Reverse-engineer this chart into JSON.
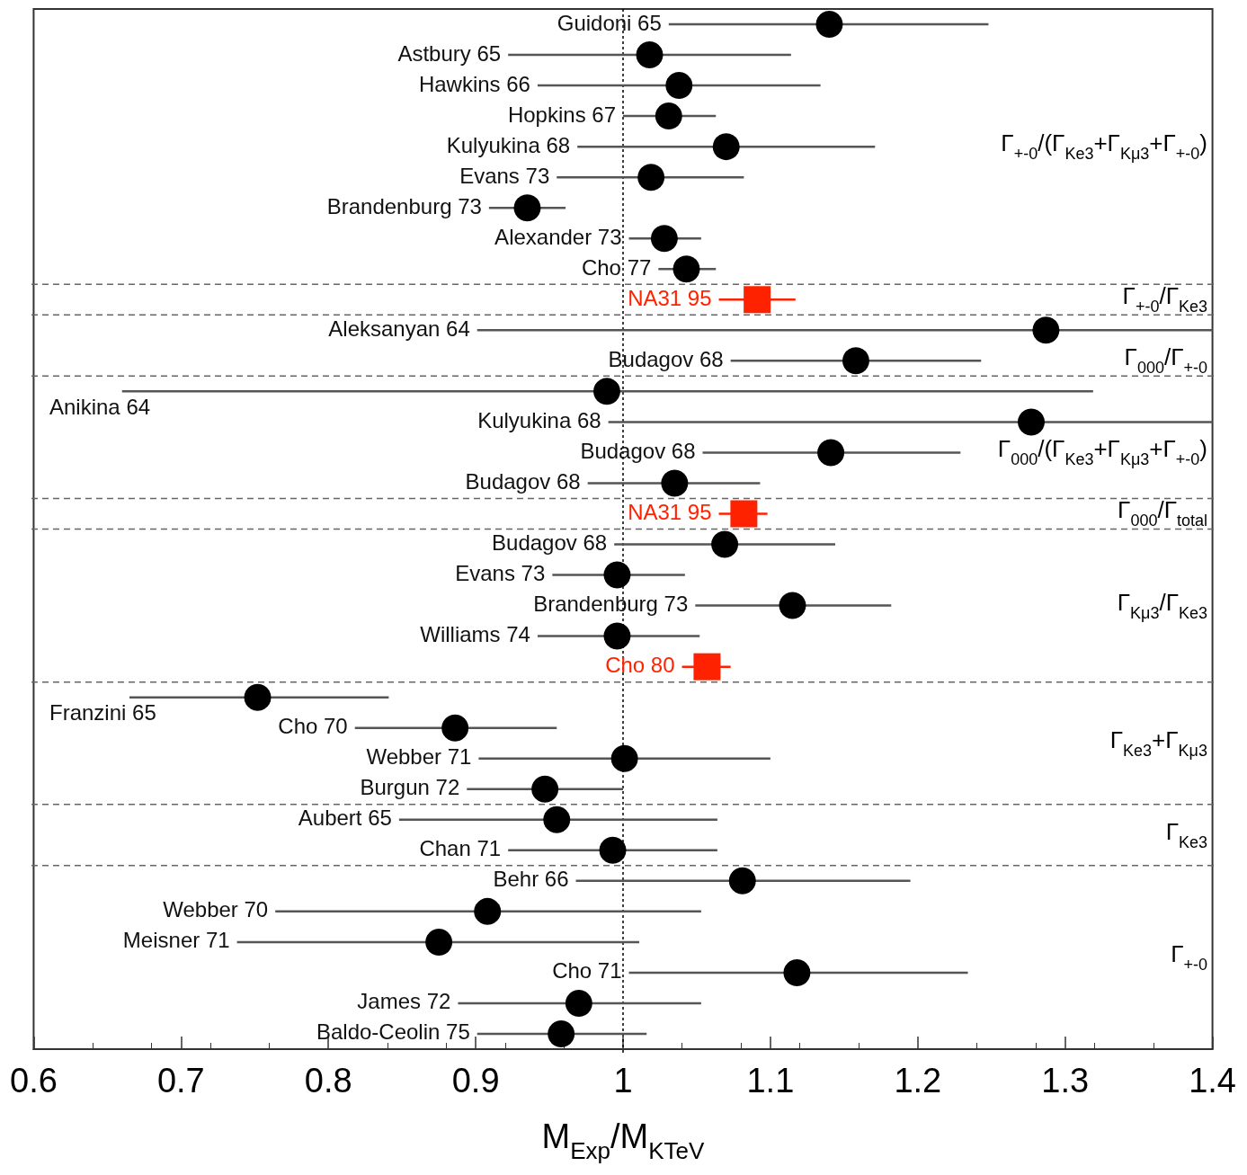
{
  "chart_data": {
    "type": "scatter",
    "orientation": "horizontal",
    "marker": "circle",
    "xlabel": "M$_{Exp}$/M$_{KTeV}$",
    "categories": [
      "Guidoni 65",
      "Astbury 65",
      "Hawkins 66",
      "Hopkins 67",
      "Kulyukina 68",
      "Evans 73",
      "Brandenburg 73",
      "Alexander 73",
      "Cho 77",
      "NA31 95",
      "Aleksanyan 64",
      "Budagov 68",
      "Anikina 64",
      "Kulyukina 68",
      "Budagov 68",
      "Budagov 68",
      "NA31 95",
      "Budagov 68",
      "Evans 73",
      "Brandenburg 73",
      "Williams 74",
      "Cho 80",
      "Franzini 65",
      "Cho 70",
      "Webber 71",
      "Burgun 72",
      "Aubert 65",
      "Chan 71",
      "Behr 66",
      "Webber 70",
      "Meisner 71",
      "Cho 71",
      "James 72",
      "Baldo-Ceolin 75"
    ],
    "series": [
      {
        "name": "Γ$_{+-0}$/(Γ$_{Ke3}$+Γ$_{Kμ3}$+Γ$_{+-0}$)",
        "color": "#000000",
        "values": [
          1.14,
          1.018,
          1.038,
          1.031,
          1.07,
          1.019,
          0.935,
          1.028,
          1.043,
          null,
          null,
          null,
          null,
          null,
          null,
          null,
          null,
          null,
          null,
          null,
          null,
          null,
          null,
          null,
          null,
          null,
          null,
          null,
          null,
          null,
          null,
          null,
          null,
          null
        ],
        "errors": [
          [
            1.031,
            1.248
          ],
          [
            0.922,
            1.114
          ],
          [
            0.942,
            1.134
          ],
          [
            1.0,
            1.063
          ],
          [
            0.969,
            1.171
          ],
          [
            0.955,
            1.082
          ],
          [
            0.909,
            0.961
          ],
          [
            1.004,
            1.053
          ],
          [
            1.024,
            1.063
          ],
          null,
          null,
          null,
          null,
          null,
          null,
          null,
          null,
          null,
          null,
          null,
          null,
          null,
          null,
          null,
          null,
          null,
          null,
          null,
          null,
          null,
          null,
          null,
          null,
          null
        ]
      },
      {
        "name": "Γ$_{+-0}$/Γ$_{Ke3}$",
        "color": "#ff2200",
        "marker": "square",
        "values": [
          null,
          null,
          null,
          null,
          null,
          null,
          null,
          null,
          null,
          1.091,
          null,
          null,
          null,
          null,
          null,
          null,
          null,
          null,
          null,
          null,
          null,
          null,
          null,
          null,
          null,
          null,
          null,
          null,
          null,
          null,
          null,
          null,
          null,
          null
        ],
        "errors": [
          null,
          null,
          null,
          null,
          null,
          null,
          null,
          null,
          null,
          [
            1.065,
            1.117
          ],
          null,
          null,
          null,
          null,
          null,
          null,
          null,
          null,
          null,
          null,
          null,
          null,
          null,
          null,
          null,
          null,
          null,
          null,
          null,
          null,
          null,
          null,
          null,
          null
        ]
      },
      {
        "name": "Γ$_{000}$/Γ$_{+-0}$",
        "color": "#000000",
        "values": [
          null,
          null,
          null,
          null,
          null,
          null,
          null,
          null,
          null,
          null,
          1.287,
          1.158,
          null,
          null,
          null,
          null,
          null,
          null,
          null,
          null,
          null,
          null,
          null,
          null,
          null,
          null,
          null,
          null,
          null,
          null,
          null,
          null,
          null,
          null
        ],
        "errors": [
          null,
          null,
          null,
          null,
          null,
          null,
          null,
          null,
          null,
          null,
          [
            0.901,
            1.4
          ],
          [
            1.073,
            1.243
          ],
          null,
          null,
          null,
          null,
          null,
          null,
          null,
          null,
          null,
          null,
          null,
          null,
          null,
          null,
          null,
          null,
          null,
          null,
          null,
          null,
          null,
          null
        ]
      },
      {
        "name": "Γ$_{000}$/(Γ$_{Ke3}$+Γ$_{Kμ3}$+Γ$_{+-0}$)",
        "color": "#000000",
        "values": [
          null,
          null,
          null,
          null,
          null,
          null,
          null,
          null,
          null,
          null,
          null,
          null,
          0.989,
          1.277,
          1.141,
          1.035,
          null,
          null,
          null,
          null,
          null,
          null,
          null,
          null,
          null,
          null,
          null,
          null,
          null,
          null,
          null,
          null,
          null,
          null
        ],
        "errors": [
          null,
          null,
          null,
          null,
          null,
          null,
          null,
          null,
          null,
          null,
          null,
          null,
          [
            0.66,
            1.319
          ],
          [
            0.99,
            1.4
          ],
          [
            1.054,
            1.229
          ],
          [
            0.976,
            1.093
          ],
          null,
          null,
          null,
          null,
          null,
          null,
          null,
          null,
          null,
          null,
          null,
          null,
          null,
          null,
          null,
          null,
          null,
          null
        ]
      },
      {
        "name": "Γ$_{000}$/Γ$_{total}$",
        "color": "#ff2200",
        "marker": "square",
        "values": [
          null,
          null,
          null,
          null,
          null,
          null,
          null,
          null,
          null,
          null,
          null,
          null,
          null,
          null,
          null,
          null,
          1.082,
          null,
          null,
          null,
          null,
          null,
          null,
          null,
          null,
          null,
          null,
          null,
          null,
          null,
          null,
          null,
          null,
          null
        ],
        "errors": [
          null,
          null,
          null,
          null,
          null,
          null,
          null,
          null,
          null,
          null,
          null,
          null,
          null,
          null,
          null,
          null,
          [
            1.065,
            1.098
          ],
          null,
          null,
          null,
          null,
          null,
          null,
          null,
          null,
          null,
          null,
          null,
          null,
          null,
          null,
          null,
          null,
          null
        ]
      },
      {
        "name": "Γ$_{Kμ3}$/Γ$_{Ke3}$",
        "color": "#000000",
        "values": [
          null,
          null,
          null,
          null,
          null,
          null,
          null,
          null,
          null,
          null,
          null,
          null,
          null,
          null,
          null,
          null,
          null,
          1.069,
          0.996,
          1.115,
          0.996,
          null,
          null,
          null,
          null,
          null,
          null,
          null,
          null,
          null,
          null,
          null,
          null,
          null
        ],
        "errors": [
          null,
          null,
          null,
          null,
          null,
          null,
          null,
          null,
          null,
          null,
          null,
          null,
          null,
          null,
          null,
          null,
          null,
          [
            0.994,
            1.144
          ],
          [
            0.952,
            1.042
          ],
          [
            1.049,
            1.182
          ],
          [
            0.942,
            1.052
          ],
          null,
          null,
          null,
          null,
          null,
          null,
          null,
          null,
          null,
          null,
          null,
          null,
          null
        ]
      },
      {
        "color": "#ff2200",
        "marker": "square",
        "values": [
          null,
          null,
          null,
          null,
          null,
          null,
          null,
          null,
          null,
          null,
          null,
          null,
          null,
          null,
          null,
          null,
          null,
          null,
          null,
          null,
          null,
          1.057,
          null,
          null,
          null,
          null,
          null,
          null,
          null,
          null,
          null,
          null,
          null,
          null
        ],
        "errors": [
          null,
          null,
          null,
          null,
          null,
          null,
          null,
          null,
          null,
          null,
          null,
          null,
          null,
          null,
          null,
          null,
          null,
          null,
          null,
          null,
          null,
          [
            1.04,
            1.073
          ],
          null,
          null,
          null,
          null,
          null,
          null,
          null,
          null,
          null,
          null,
          null,
          null
        ]
      },
      {
        "name": "Γ$_{Ke3}$+Γ$_{Kμ3}$",
        "color": "#000000",
        "values": [
          null,
          null,
          null,
          null,
          null,
          null,
          null,
          null,
          null,
          null,
          null,
          null,
          null,
          null,
          null,
          null,
          null,
          null,
          null,
          null,
          null,
          null,
          0.752,
          0.886,
          1.001,
          0.947,
          null,
          null,
          null,
          null,
          null,
          null,
          null,
          null
        ],
        "errors": [
          null,
          null,
          null,
          null,
          null,
          null,
          null,
          null,
          null,
          null,
          null,
          null,
          null,
          null,
          null,
          null,
          null,
          null,
          null,
          null,
          null,
          null,
          [
            0.665,
            0.841
          ],
          [
            0.818,
            0.955
          ],
          [
            0.902,
            1.1
          ],
          [
            0.894,
            1.0
          ],
          null,
          null,
          null,
          null,
          null,
          null,
          null,
          null
        ]
      },
      {
        "name": "Γ$_{Ke3}$",
        "color": "#000000",
        "values": [
          null,
          null,
          null,
          null,
          null,
          null,
          null,
          null,
          null,
          null,
          null,
          null,
          null,
          null,
          null,
          null,
          null,
          null,
          null,
          null,
          null,
          null,
          null,
          null,
          null,
          null,
          0.955,
          0.993,
          null,
          null,
          null,
          null,
          null,
          null
        ],
        "errors": [
          null,
          null,
          null,
          null,
          null,
          null,
          null,
          null,
          null,
          null,
          null,
          null,
          null,
          null,
          null,
          null,
          null,
          null,
          null,
          null,
          null,
          null,
          null,
          null,
          null,
          null,
          [
            0.848,
            1.064
          ],
          [
            0.922,
            1.064
          ],
          null,
          null,
          null,
          null,
          null,
          null
        ]
      },
      {
        "name": "Γ$_{+-0}$",
        "color": "#000000",
        "values": [
          null,
          null,
          null,
          null,
          null,
          null,
          null,
          null,
          null,
          null,
          null,
          null,
          null,
          null,
          null,
          null,
          null,
          null,
          null,
          null,
          null,
          null,
          null,
          null,
          null,
          null,
          null,
          null,
          1.081,
          0.908,
          0.875,
          1.118,
          0.97,
          0.958
        ],
        "errors": [
          null,
          null,
          null,
          null,
          null,
          null,
          null,
          null,
          null,
          null,
          null,
          null,
          null,
          null,
          null,
          null,
          null,
          null,
          null,
          null,
          null,
          null,
          null,
          null,
          null,
          null,
          null,
          null,
          [
            0.968,
            1.195
          ],
          [
            0.764,
            1.053
          ],
          [
            0.738,
            1.011
          ],
          [
            1.004,
            1.234
          ],
          [
            0.888,
            1.053
          ],
          [
            0.901,
            1.016
          ]
        ]
      }
    ],
    "xlim": [
      0.6,
      1.4
    ],
    "xticks": [
      0.6,
      0.7,
      0.8,
      0.9,
      {
        "value": 1,
        "label": "1"
      },
      1.1,
      1.2,
      1.3,
      1.4
    ],
    "tick_labels": "x",
    "grid": false,
    "legend": false,
    "ref_lines": [
      {
        "axis": "x",
        "value": 1,
        "line_style": "dotted",
        "color": "#000000"
      }
    ]
  }
}
